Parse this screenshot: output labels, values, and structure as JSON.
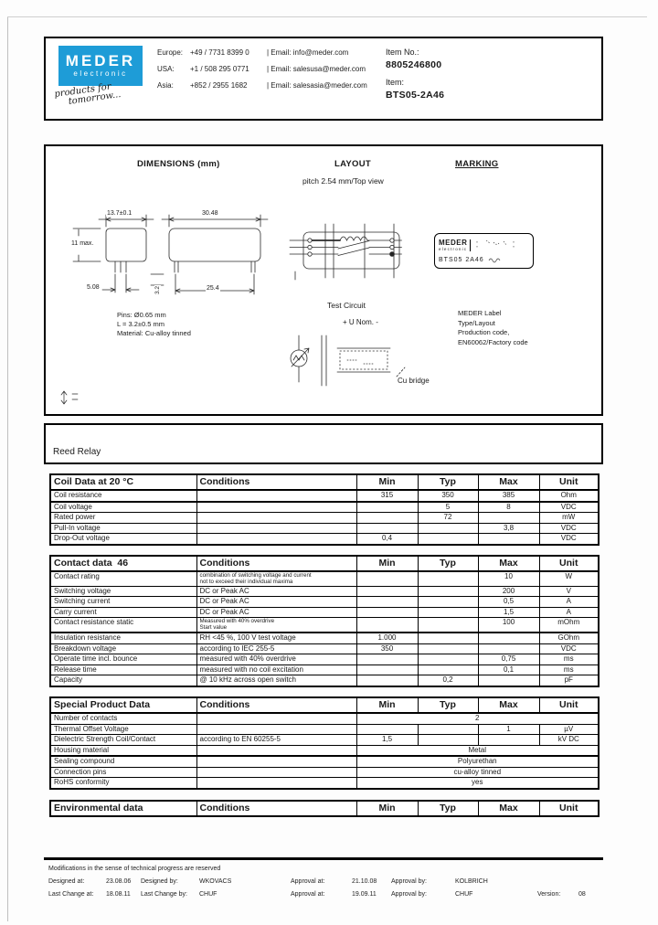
{
  "page": {
    "brand_blue": "#1e9cd7",
    "ink": "#000000"
  },
  "header": {
    "logo_line1": "MEDER",
    "logo_line2": "electronic",
    "tagline_line1": "products for",
    "tagline_line2": "tomorrow...",
    "contacts": [
      {
        "region": "Europe:",
        "phone": "+49 / 7731 8399 0",
        "email": "| Email: info@meder.com"
      },
      {
        "region": "USA:",
        "phone": "+1 / 508 295 0771",
        "email": "| Email: salesusa@meder.com"
      },
      {
        "region": "Asia:",
        "phone": "+852 / 2955 1682",
        "email": "| Email: salesasia@meder.com"
      }
    ],
    "item_no_label": "Item No.:",
    "item_no_value": "8805246800",
    "item_label": "Item:",
    "item_value": "BTS05-2A46"
  },
  "drawing": {
    "dimensions_title": "DIMENSIONS (mm)",
    "layout_title": "LAYOUT",
    "layout_subtitle": "pitch 2.54 mm/Top view",
    "marking_title": "MARKING",
    "dim_width": "13.7±0.1",
    "dim_height": "11 max.",
    "dim_body_length": "30.48",
    "dim_pin_pitch": "5.08",
    "dim_pin_span": "25.4",
    "dim_lead_length": "3.2",
    "pin_notes": [
      "Pins: Ø0.65 mm",
      "L = 3.2±0.5 mm",
      "Material: Cu-alloy tinned"
    ],
    "test_circuit_title": "Test Circuit",
    "u_nom_label": "+ U Nom. -",
    "cu_bridge_label": "Cu bridge",
    "marking_label_logo1": "MEDER",
    "marking_label_logo2": "electronic",
    "marking_label_type": "BTS05 2A46",
    "marking_notes": [
      "MEDER Label",
      "Type/Layout",
      "Production code,",
      "EN60062/Factory code"
    ]
  },
  "product_section": {
    "title": "Reed Relay"
  },
  "tables": [
    {
      "title": "Coil Data at 20 °C",
      "headers": {
        "conditions": "Conditions",
        "min": "Min",
        "typ": "Typ",
        "max": "Max",
        "unit": "Unit"
      },
      "rows": [
        {
          "label": "Coil resistance",
          "cond": "",
          "min": "315",
          "typ": "350",
          "max": "385",
          "unit": "Ohm"
        },
        {
          "label": "Coil voltage",
          "cond": "",
          "min": "",
          "typ": "5",
          "max": "8",
          "unit": "VDC"
        },
        {
          "label": "Rated power",
          "cond": "",
          "min": "",
          "typ": "72",
          "max": "",
          "unit": "mW"
        },
        {
          "label": "Pull-In voltage",
          "cond": "",
          "min": "",
          "typ": "",
          "max": "3,8",
          "unit": "VDC"
        },
        {
          "label": "Drop-Out voltage",
          "cond": "",
          "min": "0,4",
          "typ": "",
          "max": "",
          "unit": "VDC"
        }
      ]
    },
    {
      "title": "Contact data  46",
      "headers": {
        "conditions": "Conditions",
        "min": "Min",
        "typ": "Typ",
        "max": "Max",
        "unit": "Unit"
      },
      "rows": [
        {
          "label": "Contact rating",
          "cond": "combination of switching voltage and current\nnot to exceed their individual maxima",
          "small": true,
          "max": "10",
          "unit": "W"
        },
        {
          "label": "Switching voltage",
          "cond": "DC or Peak AC",
          "max": "200",
          "unit": "V"
        },
        {
          "label": "Switching current",
          "cond": "DC or Peak AC",
          "max": "0,5",
          "unit": "A"
        },
        {
          "label": "Carry current",
          "cond": "DC or Peak AC",
          "max": "1,5",
          "unit": "A"
        },
        {
          "label": "Contact resistance static",
          "cond": "Measured with 40% overdrive\nStart value",
          "small": true,
          "max": "100",
          "unit": "mOhm"
        },
        {
          "label": "Insulation resistance",
          "cond": "RH <45 %, 100 V test voltage",
          "min": "1.000",
          "unit": "GOhm"
        },
        {
          "label": "Breakdown voltage",
          "cond": "according to IEC 255-5",
          "min": "350",
          "unit": "VDC"
        },
        {
          "label": "Operate time incl. bounce",
          "cond": "measured with 40% overdrive",
          "max": "0,75",
          "unit": "ms"
        },
        {
          "label": "Release time",
          "cond": "measured with no coil excitation",
          "max": "0,1",
          "unit": "ms"
        },
        {
          "label": "Capacity",
          "cond": "@ 10 kHz  across open switch",
          "typ": "0,2",
          "unit": "pF"
        }
      ]
    },
    {
      "title": "Special Product Data",
      "headers": {
        "conditions": "Conditions",
        "min": "Min",
        "typ": "Typ",
        "max": "Max",
        "unit": "Unit"
      },
      "rows": [
        {
          "label": "Number of contacts",
          "cond": "",
          "span": "2"
        },
        {
          "label": "Thermal Offset Voltage",
          "cond": "",
          "max": "1",
          "unit": "µV"
        },
        {
          "label": "Dielectric Strength Coil/Contact",
          "cond": "according to EN 60255-5",
          "min": "1,5",
          "unit": "kV DC"
        },
        {
          "label": "Housing material",
          "cond": "",
          "span": "Metal"
        },
        {
          "label": "Sealing compound",
          "cond": "",
          "span": "Polyurethan"
        },
        {
          "label": "Connection pins",
          "cond": "",
          "span": "cu-alloy tinned"
        },
        {
          "label": "RoHS conformity",
          "cond": "",
          "span": "yes"
        }
      ]
    },
    {
      "title": "Environmental data",
      "headers": {
        "conditions": "Conditions",
        "min": "Min",
        "typ": "Typ",
        "max": "Max",
        "unit": "Unit"
      },
      "rows": []
    }
  ],
  "footer": {
    "note": "Modifications in the sense of technical progress are reserved",
    "row1": [
      "Designed at:",
      "23.08.06",
      "Designed by:",
      "WKOVACS",
      "Approval at:",
      "21.10.08",
      "Approval by:",
      "KOLBRICH"
    ],
    "row2": [
      "Last Change at:",
      "18.08.11",
      "Last Change by:",
      "CHUF",
      "Approval at:",
      "19.09.11",
      "Approval by:",
      "CHUF",
      "Version:",
      "08"
    ]
  }
}
